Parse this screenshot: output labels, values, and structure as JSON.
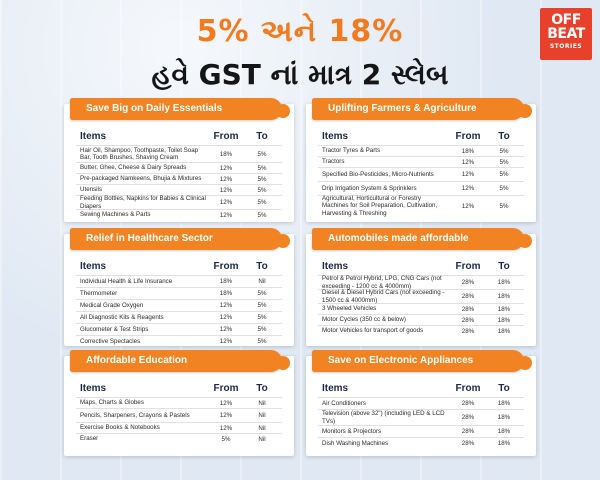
{
  "header": {
    "line1": "5% અને 18%",
    "line2": "હવે GST નાં માત્ર 2 સ્લેબ"
  },
  "logo": {
    "line1": "OFF",
    "line2": "BEAT",
    "line3": "STORIES"
  },
  "columns": {
    "item": "Items",
    "from": "From",
    "to": "To"
  },
  "cards": [
    {
      "title": "Save Big on Daily Essentials",
      "rows": [
        {
          "item": "Hair Oil, Shampoo, Toothpaste, Toilet Soap Bar, Tooth Brushes, Shaving Cream",
          "from": "18%",
          "to": "5%"
        },
        {
          "item": "Butter, Ghee, Cheese & Dairy Spreads",
          "from": "12%",
          "to": "5%"
        },
        {
          "item": "Pre-packaged Namkeens, Bhujia & Mixtures",
          "from": "12%",
          "to": "5%"
        },
        {
          "item": "Utensils",
          "from": "12%",
          "to": "5%"
        },
        {
          "item": "Feeding Bottles, Napkins for Babies & Clinical Diapers",
          "from": "12%",
          "to": "5%"
        },
        {
          "item": "Sewing Machines & Parts",
          "from": "12%",
          "to": "5%"
        }
      ]
    },
    {
      "title": "Uplifting Farmers & Agriculture",
      "rows": [
        {
          "item": "Tractor Tyres & Parts",
          "from": "18%",
          "to": "5%"
        },
        {
          "item": "Tractors",
          "from": "12%",
          "to": "5%"
        },
        {
          "item": "Specified Bio-Pesticides, Micro-Nutrients",
          "from": "12%",
          "to": "5%"
        },
        {
          "item": "Drip Irrigation System & Sprinklers",
          "from": "12%",
          "to": "5%"
        },
        {
          "item": "Agricultural, Horticultural or Forestry Machines for Soil Preparation, Cultivation, Harvesting & Threshing",
          "from": "12%",
          "to": "5%"
        }
      ]
    },
    {
      "title": "Relief in Healthcare Sector",
      "rows": [
        {
          "item": "Individual Health & Life Insurance",
          "from": "18%",
          "to": "Nil"
        },
        {
          "item": "Thermometer",
          "from": "18%",
          "to": "5%"
        },
        {
          "item": "Medical Grade Oxygen",
          "from": "12%",
          "to": "5%"
        },
        {
          "item": "All Diagnostic Kits & Reagents",
          "from": "12%",
          "to": "5%"
        },
        {
          "item": "Glucometer & Test Strips",
          "from": "12%",
          "to": "5%"
        },
        {
          "item": "Corrective Spectacles",
          "from": "12%",
          "to": "5%"
        }
      ]
    },
    {
      "title": "Automobiles made affordable",
      "rows": [
        {
          "item": "Petrol & Petrol Hybrid, LPG, CNG Cars (not exceeding - 1200 cc & 4000mm)",
          "from": "28%",
          "to": "18%"
        },
        {
          "item": "Diesel & Diesel Hybrid Cars (not exceeding - 1500 cc & 4000mm)",
          "from": "28%",
          "to": "18%"
        },
        {
          "item": "3 Wheeled Vehicles",
          "from": "28%",
          "to": "18%"
        },
        {
          "item": "Motor Cycles (350 cc & below)",
          "from": "28%",
          "to": "18%"
        },
        {
          "item": "Motor Vehicles for transport of goods",
          "from": "28%",
          "to": "18%"
        }
      ]
    },
    {
      "title": "Affordable Education",
      "rows": [
        {
          "item": "Maps, Charts & Globes",
          "from": "12%",
          "to": "Nil"
        },
        {
          "item": "Pencils, Sharpeners, Crayons & Pastels",
          "from": "12%",
          "to": "Nil"
        },
        {
          "item": "Exercise Books & Notebooks",
          "from": "12%",
          "to": "Nil"
        },
        {
          "item": "Eraser",
          "from": "5%",
          "to": "Nil"
        }
      ]
    },
    {
      "title": "Save on Electronic Appliances",
      "rows": [
        {
          "item": "Air Conditioners",
          "from": "28%",
          "to": "18%"
        },
        {
          "item": "Television (above 32\") (including LED & LCD TVs)",
          "from": "28%",
          "to": "18%"
        },
        {
          "item": "Monitors & Projectors",
          "from": "28%",
          "to": "18%"
        },
        {
          "item": "Dish Washing Machines",
          "from": "28%",
          "to": "18%"
        }
      ]
    }
  ]
}
